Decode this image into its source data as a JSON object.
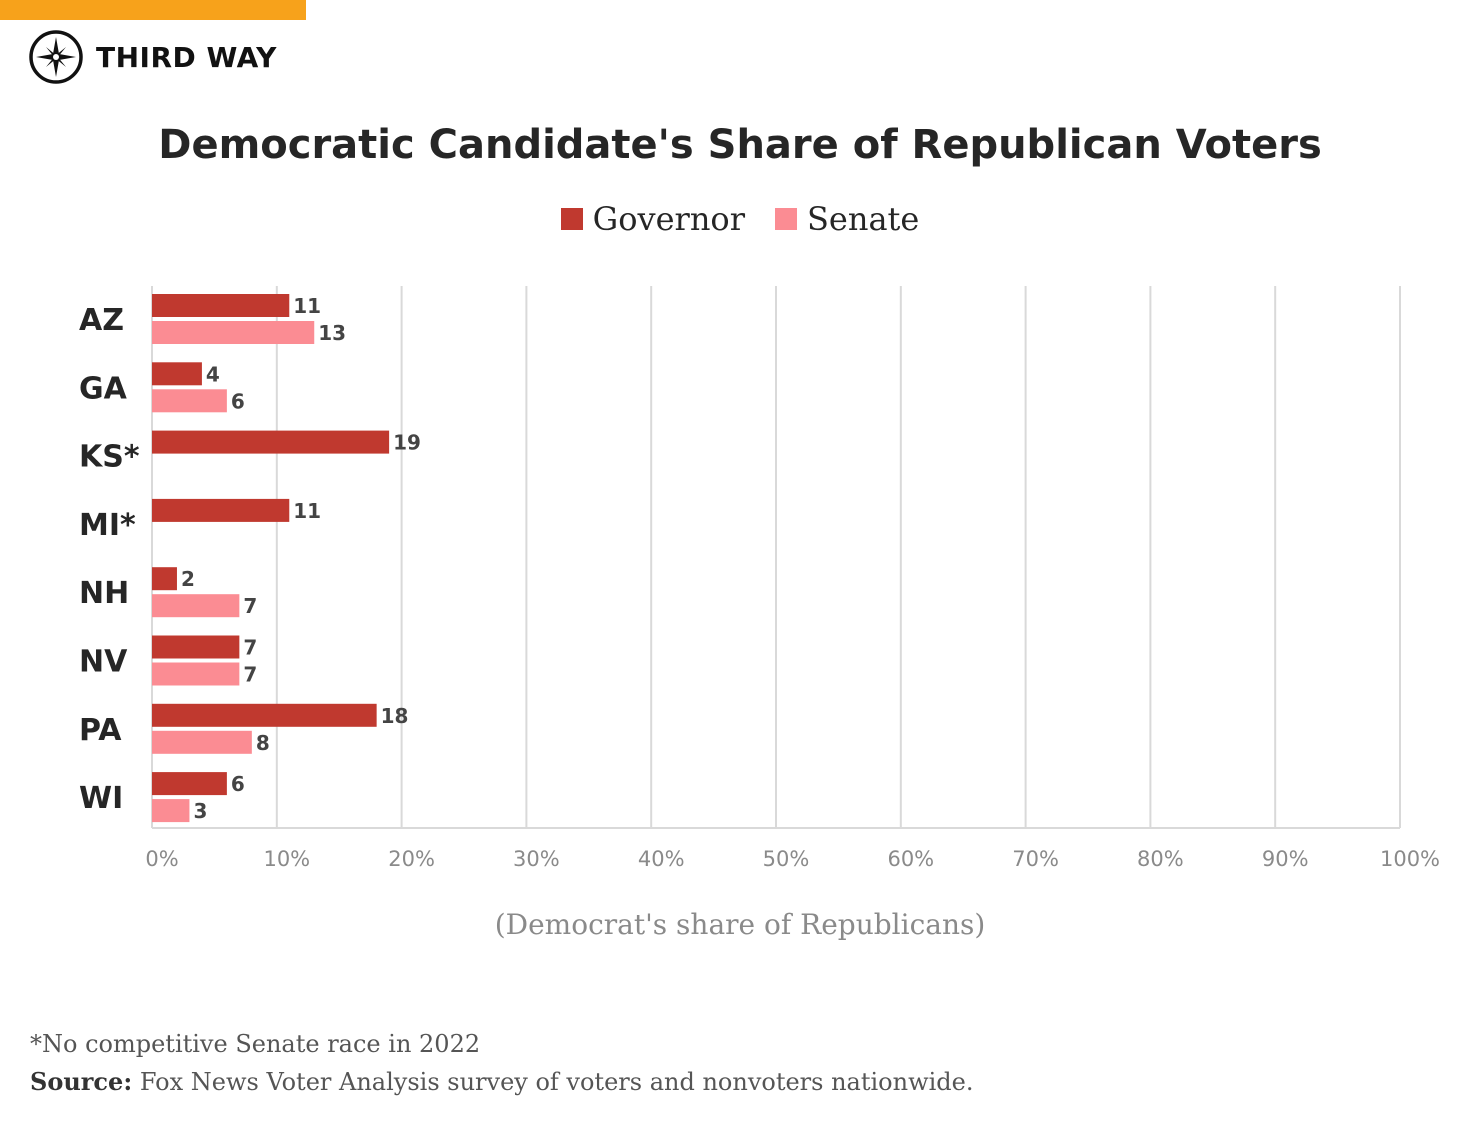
{
  "brand": {
    "name": "THIRD WAY",
    "accent_color": "#F7A21B"
  },
  "colors": {
    "governor": "#C0392F",
    "senate": "#FB8C93",
    "grid": "#d9d9d9",
    "tick": "#8a8a8a",
    "label": "#262626"
  },
  "note": "*No competitive Senate race in 2022",
  "source": {
    "label": "Source:",
    "text": "Fox News Voter Analysis survey of voters and nonvoters nationwide."
  },
  "chart_data": {
    "type": "bar",
    "orientation": "horizontal",
    "title": "Democratic Candidate's Share of Republican Voters",
    "xlabel": "(Democrat's share of Republicans)",
    "ylabel": "",
    "xlim": [
      0,
      100
    ],
    "xticks": [
      "0%",
      "10%",
      "20%",
      "30%",
      "40%",
      "50%",
      "60%",
      "70%",
      "80%",
      "90%",
      "100%"
    ],
    "grid": true,
    "legend_position": "top-center",
    "categories": [
      "AZ",
      "GA",
      "KS*",
      "MI*",
      "NH",
      "NV",
      "PA",
      "WI"
    ],
    "series": [
      {
        "name": "Governor",
        "values": [
          11,
          4,
          19,
          11,
          2,
          7,
          18,
          6
        ]
      },
      {
        "name": "Senate",
        "values": [
          13,
          6,
          null,
          null,
          7,
          7,
          8,
          3
        ]
      }
    ]
  }
}
